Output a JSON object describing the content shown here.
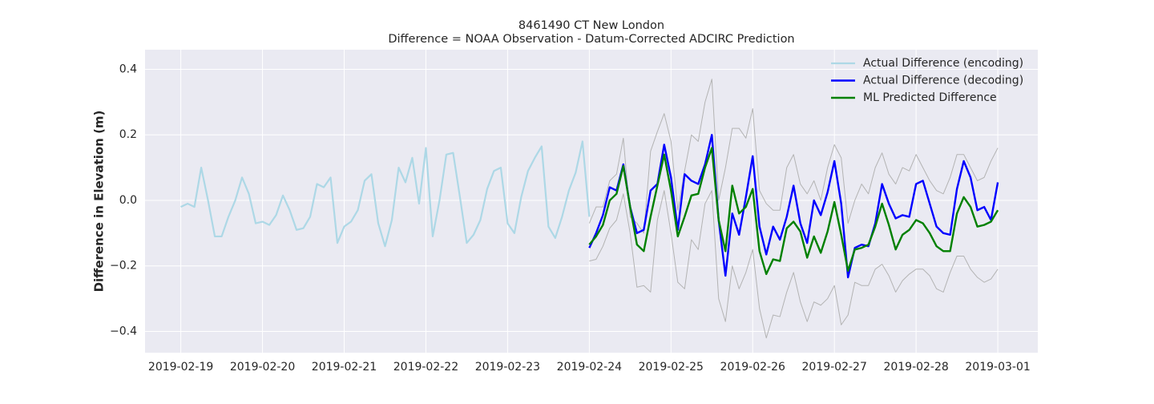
{
  "chart_data": {
    "type": "line",
    "title": "8461490 CT New London",
    "subtitle": "Difference = NOAA Observation - Datum-Corrected ADCIRC Prediction",
    "ylabel": "Difference in Elevation (m)",
    "xlim": [
      "2019-02-18 13:30",
      "2019-03-01 11:45"
    ],
    "xticks": [
      "2019-02-19",
      "2019-02-20",
      "2019-02-21",
      "2019-02-22",
      "2019-02-23",
      "2019-02-24",
      "2019-02-25",
      "2019-02-26",
      "2019-02-27",
      "2019-02-28",
      "2019-03-01"
    ],
    "ylim": [
      -0.465,
      0.46
    ],
    "yticks": [
      {
        "value": -0.4,
        "label": "−0.4"
      },
      {
        "value": -0.2,
        "label": "−0.2"
      },
      {
        "value": 0,
        "label": "0.0"
      },
      0.2,
      0.4
    ],
    "grid": true,
    "legend": "upper right",
    "x": [
      "2019-02-24 00:00",
      "2019-02-24 02:00",
      "2019-02-24 04:00",
      "2019-02-24 06:00",
      "2019-02-24 08:00",
      "2019-02-24 10:00",
      "2019-02-24 12:00",
      "2019-02-24 14:00",
      "2019-02-24 16:00",
      "2019-02-24 18:00",
      "2019-02-24 20:00",
      "2019-02-24 22:00",
      "2019-02-25 00:00",
      "2019-02-25 02:00",
      "2019-02-25 04:00",
      "2019-02-25 06:00",
      "2019-02-25 08:00",
      "2019-02-25 10:00",
      "2019-02-25 12:00",
      "2019-02-25 14:00",
      "2019-02-25 16:00",
      "2019-02-25 18:00",
      "2019-02-25 20:00",
      "2019-02-25 22:00",
      "2019-02-26 00:00",
      "2019-02-26 02:00",
      "2019-02-26 04:00",
      "2019-02-26 06:00",
      "2019-02-26 08:00",
      "2019-02-26 10:00",
      "2019-02-26 12:00",
      "2019-02-26 14:00",
      "2019-02-26 16:00",
      "2019-02-26 18:00",
      "2019-02-26 20:00",
      "2019-02-26 22:00",
      "2019-02-27 00:00",
      "2019-02-27 02:00",
      "2019-02-27 04:00",
      "2019-02-27 06:00",
      "2019-02-27 08:00",
      "2019-02-27 10:00",
      "2019-02-27 12:00",
      "2019-02-27 14:00",
      "2019-02-27 16:00",
      "2019-02-27 18:00",
      "2019-02-27 20:00",
      "2019-02-27 22:00",
      "2019-02-28 00:00",
      "2019-02-28 02:00",
      "2019-02-28 04:00",
      "2019-02-28 06:00",
      "2019-02-28 08:00",
      "2019-02-28 10:00",
      "2019-02-28 12:00",
      "2019-02-28 14:00",
      "2019-02-28 16:00",
      "2019-02-28 18:00",
      "2019-02-28 20:00",
      "2019-02-28 22:00",
      "2019-03-01 00:00"
    ],
    "series": [
      {
        "color": "#b3b3b3",
        "width": 1,
        "values": [
          -0.07,
          -0.02,
          -0.02,
          0.06,
          0.08,
          0.19,
          -0.05,
          -0.07,
          -0.1,
          0.15,
          0.21,
          0.265,
          0.18,
          -0.03,
          0.09,
          0.2,
          0.18,
          0.3,
          0.37,
          0.0,
          0.1,
          0.22,
          0.22,
          0.19,
          0.28,
          0.03,
          -0.01,
          -0.03,
          -0.03,
          0.1,
          0.14,
          0.05,
          0.02,
          0.06,
          0.0,
          0.1,
          0.17,
          0.13,
          -0.07,
          0.0,
          0.05,
          0.02,
          0.1,
          0.145,
          0.08,
          0.05,
          0.1,
          0.09,
          0.14,
          0.1,
          0.06,
          0.03,
          0.02,
          0.07,
          0.14,
          0.14,
          0.1,
          0.06,
          0.07,
          0.12,
          0.16
        ]
      },
      {
        "color": "#b3b3b3",
        "width": 1,
        "values": [
          -0.185,
          -0.18,
          -0.14,
          -0.085,
          -0.06,
          0.02,
          -0.1,
          -0.265,
          -0.26,
          -0.28,
          -0.06,
          0.03,
          -0.1,
          -0.25,
          -0.27,
          -0.12,
          -0.15,
          -0.01,
          0.03,
          -0.3,
          -0.37,
          -0.2,
          -0.27,
          -0.22,
          -0.15,
          -0.33,
          -0.42,
          -0.35,
          -0.355,
          -0.28,
          -0.22,
          -0.31,
          -0.37,
          -0.31,
          -0.32,
          -0.3,
          -0.26,
          -0.38,
          -0.35,
          -0.25,
          -0.26,
          -0.26,
          -0.21,
          -0.195,
          -0.23,
          -0.28,
          -0.245,
          -0.225,
          -0.21,
          -0.21,
          -0.23,
          -0.27,
          -0.28,
          -0.22,
          -0.17,
          -0.17,
          -0.21,
          -0.235,
          -0.25,
          -0.24,
          -0.21
        ]
      },
      {
        "name": "Actual Difference (encoding)",
        "color": "#add8e6",
        "width": 2.2,
        "x": [
          "2019-02-19 00:00",
          "2019-02-19 02:00",
          "2019-02-19 04:00",
          "2019-02-19 06:00",
          "2019-02-19 08:00",
          "2019-02-19 10:00",
          "2019-02-19 12:00",
          "2019-02-19 14:00",
          "2019-02-19 16:00",
          "2019-02-19 18:00",
          "2019-02-19 20:00",
          "2019-02-19 22:00",
          "2019-02-20 00:00",
          "2019-02-20 02:00",
          "2019-02-20 04:00",
          "2019-02-20 06:00",
          "2019-02-20 08:00",
          "2019-02-20 10:00",
          "2019-02-20 12:00",
          "2019-02-20 14:00",
          "2019-02-20 16:00",
          "2019-02-20 18:00",
          "2019-02-20 20:00",
          "2019-02-20 22:00",
          "2019-02-21 00:00",
          "2019-02-21 02:00",
          "2019-02-21 04:00",
          "2019-02-21 06:00",
          "2019-02-21 08:00",
          "2019-02-21 10:00",
          "2019-02-21 12:00",
          "2019-02-21 14:00",
          "2019-02-21 16:00",
          "2019-02-21 18:00",
          "2019-02-21 20:00",
          "2019-02-21 22:00",
          "2019-02-22 00:00",
          "2019-02-22 02:00",
          "2019-02-22 04:00",
          "2019-02-22 06:00",
          "2019-02-22 08:00",
          "2019-02-22 10:00",
          "2019-02-22 12:00",
          "2019-02-22 14:00",
          "2019-02-22 16:00",
          "2019-02-22 18:00",
          "2019-02-22 20:00",
          "2019-02-22 22:00",
          "2019-02-23 00:00",
          "2019-02-23 02:00",
          "2019-02-23 04:00",
          "2019-02-23 06:00",
          "2019-02-23 08:00",
          "2019-02-23 10:00",
          "2019-02-23 12:00",
          "2019-02-23 14:00",
          "2019-02-23 16:00",
          "2019-02-23 18:00",
          "2019-02-23 20:00",
          "2019-02-23 22:00",
          "2019-02-24 00:00"
        ],
        "values": [
          -0.02,
          -0.01,
          -0.02,
          0.1,
          0.0,
          -0.11,
          -0.11,
          -0.05,
          0.0,
          0.07,
          0.02,
          -0.07,
          -0.065,
          -0.075,
          -0.045,
          0.015,
          -0.03,
          -0.09,
          -0.085,
          -0.05,
          0.05,
          0.04,
          0.07,
          -0.13,
          -0.08,
          -0.065,
          -0.03,
          0.06,
          0.08,
          -0.07,
          -0.14,
          -0.06,
          0.1,
          0.055,
          0.13,
          -0.01,
          0.16,
          -0.11,
          0.0,
          0.14,
          0.145,
          0.01,
          -0.13,
          -0.105,
          -0.06,
          0.035,
          0.09,
          0.1,
          -0.07,
          -0.1,
          0.01,
          0.09,
          0.13,
          0.165,
          -0.08,
          -0.115,
          -0.05,
          0.03,
          0.085,
          0.18,
          -0.05
        ]
      },
      {
        "name": "Actual Difference (decoding)",
        "color": "#0000ff",
        "width": 2.4,
        "values": [
          -0.145,
          -0.1,
          -0.045,
          0.04,
          0.03,
          0.11,
          -0.02,
          -0.1,
          -0.09,
          0.03,
          0.05,
          0.17,
          0.07,
          -0.09,
          0.08,
          0.06,
          0.05,
          0.11,
          0.2,
          -0.06,
          -0.23,
          -0.04,
          -0.105,
          0.01,
          0.135,
          -0.08,
          -0.165,
          -0.08,
          -0.12,
          -0.05,
          0.045,
          -0.07,
          -0.13,
          0.0,
          -0.045,
          0.025,
          0.12,
          -0.01,
          -0.235,
          -0.145,
          -0.135,
          -0.14,
          -0.07,
          0.05,
          -0.01,
          -0.055,
          -0.045,
          -0.05,
          0.05,
          0.06,
          -0.01,
          -0.08,
          -0.1,
          -0.105,
          0.035,
          0.12,
          0.07,
          -0.03,
          -0.02,
          -0.06,
          0.055
        ]
      },
      {
        "name": "ML Predicted Difference",
        "color": "#008000",
        "width": 2.4,
        "values": [
          -0.135,
          -0.11,
          -0.075,
          0.0,
          0.02,
          0.105,
          -0.02,
          -0.135,
          -0.155,
          -0.05,
          0.045,
          0.14,
          0.03,
          -0.11,
          -0.05,
          0.015,
          0.02,
          0.1,
          0.16,
          -0.06,
          -0.155,
          0.045,
          -0.04,
          -0.02,
          0.035,
          -0.155,
          -0.225,
          -0.18,
          -0.185,
          -0.085,
          -0.065,
          -0.095,
          -0.175,
          -0.11,
          -0.16,
          -0.095,
          -0.005,
          -0.105,
          -0.215,
          -0.15,
          -0.145,
          -0.135,
          -0.08,
          -0.01,
          -0.075,
          -0.15,
          -0.105,
          -0.09,
          -0.06,
          -0.07,
          -0.1,
          -0.14,
          -0.155,
          -0.155,
          -0.04,
          0.01,
          -0.02,
          -0.08,
          -0.075,
          -0.065,
          -0.03
        ]
      }
    ]
  }
}
